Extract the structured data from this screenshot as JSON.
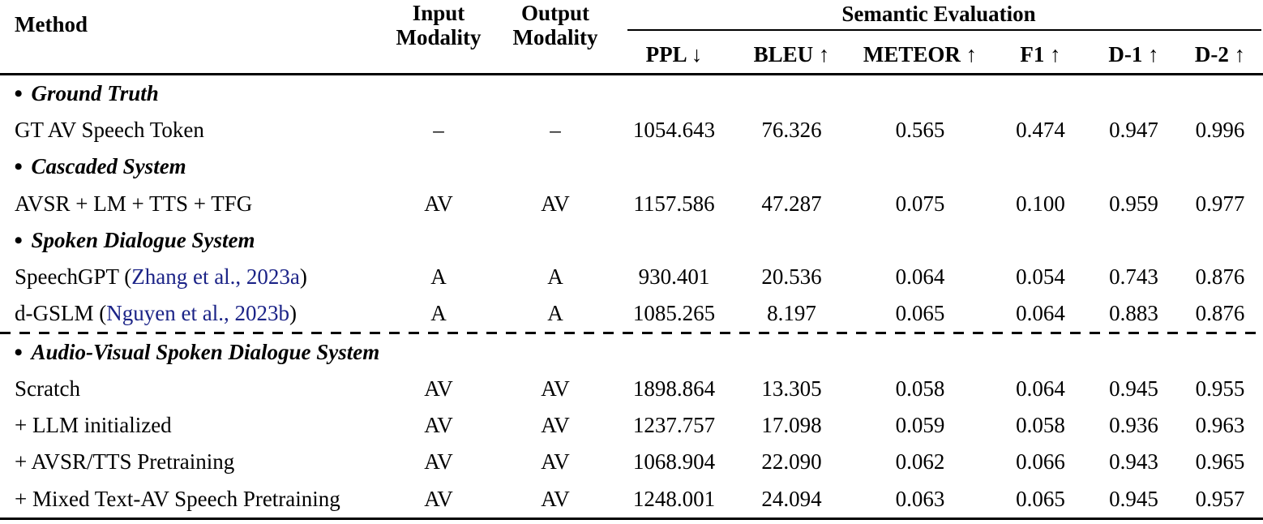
{
  "header": {
    "method": "Method",
    "input_modality": [
      "Input",
      "Modality"
    ],
    "output_modality": [
      "Output",
      "Modality"
    ],
    "group": "Semantic Evaluation",
    "metrics": [
      "PPL ↓",
      "BLEU ↑",
      "METEOR ↑",
      "F1 ↑",
      "D-1 ↑",
      "D-2 ↑"
    ]
  },
  "bullet": "•",
  "colors": {
    "text": "#000000",
    "rule": "#000000",
    "citation_link": "#1b2387"
  },
  "sections": [
    {
      "title": "Ground Truth",
      "rows": [
        {
          "method": "GT AV Speech Token",
          "input": "–",
          "output": "–",
          "values": [
            "1054.643",
            "76.326",
            "0.565",
            "0.474",
            "0.947",
            "0.996"
          ]
        }
      ]
    },
    {
      "title": "Cascaded System",
      "rows": [
        {
          "method": "AVSR + LM + TTS + TFG",
          "input": "AV",
          "output": "AV",
          "values": [
            "1157.586",
            "47.287",
            "0.075",
            "0.100",
            "0.959",
            "0.977"
          ]
        }
      ]
    },
    {
      "title": "Spoken Dialogue System",
      "rows": [
        {
          "method_prefix": "SpeechGPT (",
          "citation": "Zhang et al., 2023a",
          "method_suffix": ")",
          "input": "A",
          "output": "A",
          "values": [
            "930.401",
            "20.536",
            "0.064",
            "0.054",
            "0.743",
            "0.876"
          ]
        },
        {
          "method_prefix": "d-GSLM (",
          "citation": "Nguyen et al., 2023b",
          "method_suffix": ")",
          "input": "A",
          "output": "A",
          "values": [
            "1085.265",
            "8.197",
            "0.065",
            "0.064",
            "0.883",
            "0.876"
          ]
        }
      ]
    },
    {
      "title": "Audio-Visual Spoken Dialogue System",
      "divider_before": true,
      "rows": [
        {
          "method": "Scratch",
          "input": "AV",
          "output": "AV",
          "values": [
            "1898.864",
            "13.305",
            "0.058",
            "0.064",
            "0.945",
            "0.955"
          ]
        },
        {
          "method": "+ LLM initialized",
          "input": "AV",
          "output": "AV",
          "values": [
            "1237.757",
            "17.098",
            "0.059",
            "0.058",
            "0.936",
            "0.963"
          ]
        },
        {
          "method": "+ AVSR/TTS Pretraining",
          "input": "AV",
          "output": "AV",
          "values": [
            "1068.904",
            "22.090",
            "0.062",
            "0.066",
            "0.943",
            "0.965"
          ]
        },
        {
          "method": "+ Mixed Text-AV Speech Pretraining",
          "input": "AV",
          "output": "AV",
          "values": [
            "1248.001",
            "24.094",
            "0.063",
            "0.065",
            "0.945",
            "0.957"
          ]
        }
      ]
    }
  ]
}
